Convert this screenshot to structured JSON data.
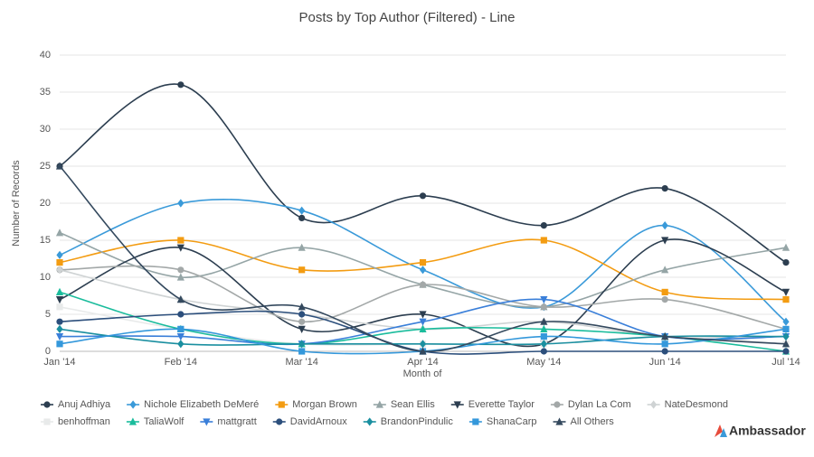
{
  "chart_data": {
    "type": "line",
    "title": "Posts by Top Author (Filtered) - Line",
    "x_label": "Month of",
    "y_label": "Number of Records",
    "categories": [
      "Jan '14",
      "Feb '14",
      "Mar '14",
      "Apr '14",
      "May '14",
      "Jun '14",
      "Jul '14"
    ],
    "ylim": [
      0,
      40
    ],
    "yticks": [
      0,
      5,
      10,
      15,
      20,
      25,
      30,
      35,
      40
    ],
    "grid": true,
    "smooth": true,
    "legend": "bottom",
    "brand": "Ambassador",
    "series": [
      {
        "name": "Anuj Adhiya",
        "color": "#2c3e50",
        "marker": "circle",
        "values": [
          25,
          36,
          18,
          21,
          17,
          22,
          12
        ]
      },
      {
        "name": "Nichole Elizabeth DeMeré",
        "color": "#3a9ad9",
        "marker": "diamond",
        "values": [
          13,
          20,
          19,
          11,
          6,
          17,
          4
        ]
      },
      {
        "name": "Morgan Brown",
        "color": "#f39c12",
        "marker": "square",
        "values": [
          12,
          15,
          11,
          12,
          15,
          8,
          7
        ]
      },
      {
        "name": "Sean Ellis",
        "color": "#95a5a6",
        "marker": "triangle-up",
        "values": [
          16,
          10,
          14,
          9,
          6,
          11,
          14
        ]
      },
      {
        "name": "Everette Taylor",
        "color": "#2c3e50",
        "marker": "triangle-down",
        "values": [
          7,
          14,
          3,
          5,
          1,
          15,
          8
        ]
      },
      {
        "name": "Dylan La Com",
        "color": "#a3a8a8",
        "marker": "circle",
        "values": [
          11,
          11,
          4,
          9,
          6,
          7,
          3
        ]
      },
      {
        "name": "NateDesmond",
        "color": "#cfd3d4",
        "marker": "diamond",
        "values": [
          11,
          7,
          5,
          3,
          4,
          2,
          2
        ]
      },
      {
        "name": "benhoffman",
        "color": "#e8eaea",
        "marker": "square",
        "values": [
          6,
          3,
          1,
          1,
          1,
          2,
          1
        ]
      },
      {
        "name": "TaliaWolf",
        "color": "#1abc9c",
        "marker": "triangle-up",
        "values": [
          8,
          3,
          1,
          3,
          3,
          2,
          0
        ]
      },
      {
        "name": "mattgratt",
        "color": "#3a7fd9",
        "marker": "triangle-down",
        "values": [
          2,
          2,
          1,
          4,
          7,
          2,
          2
        ]
      },
      {
        "name": "DavidArnoux",
        "color": "#2c4f7c",
        "marker": "circle",
        "values": [
          4,
          5,
          5,
          0,
          0,
          0,
          0
        ]
      },
      {
        "name": "BrandonPindulic",
        "color": "#1a8fa0",
        "marker": "diamond",
        "values": [
          3,
          1,
          1,
          1,
          1,
          2,
          2
        ]
      },
      {
        "name": "ShanaCarp",
        "color": "#3498db",
        "marker": "square",
        "values": [
          1,
          3,
          0,
          0,
          2,
          1,
          3
        ]
      },
      {
        "name": "All Others",
        "color": "#34495e",
        "marker": "triangle-up",
        "values": [
          25,
          7,
          6,
          0,
          4,
          2,
          1
        ]
      }
    ]
  }
}
